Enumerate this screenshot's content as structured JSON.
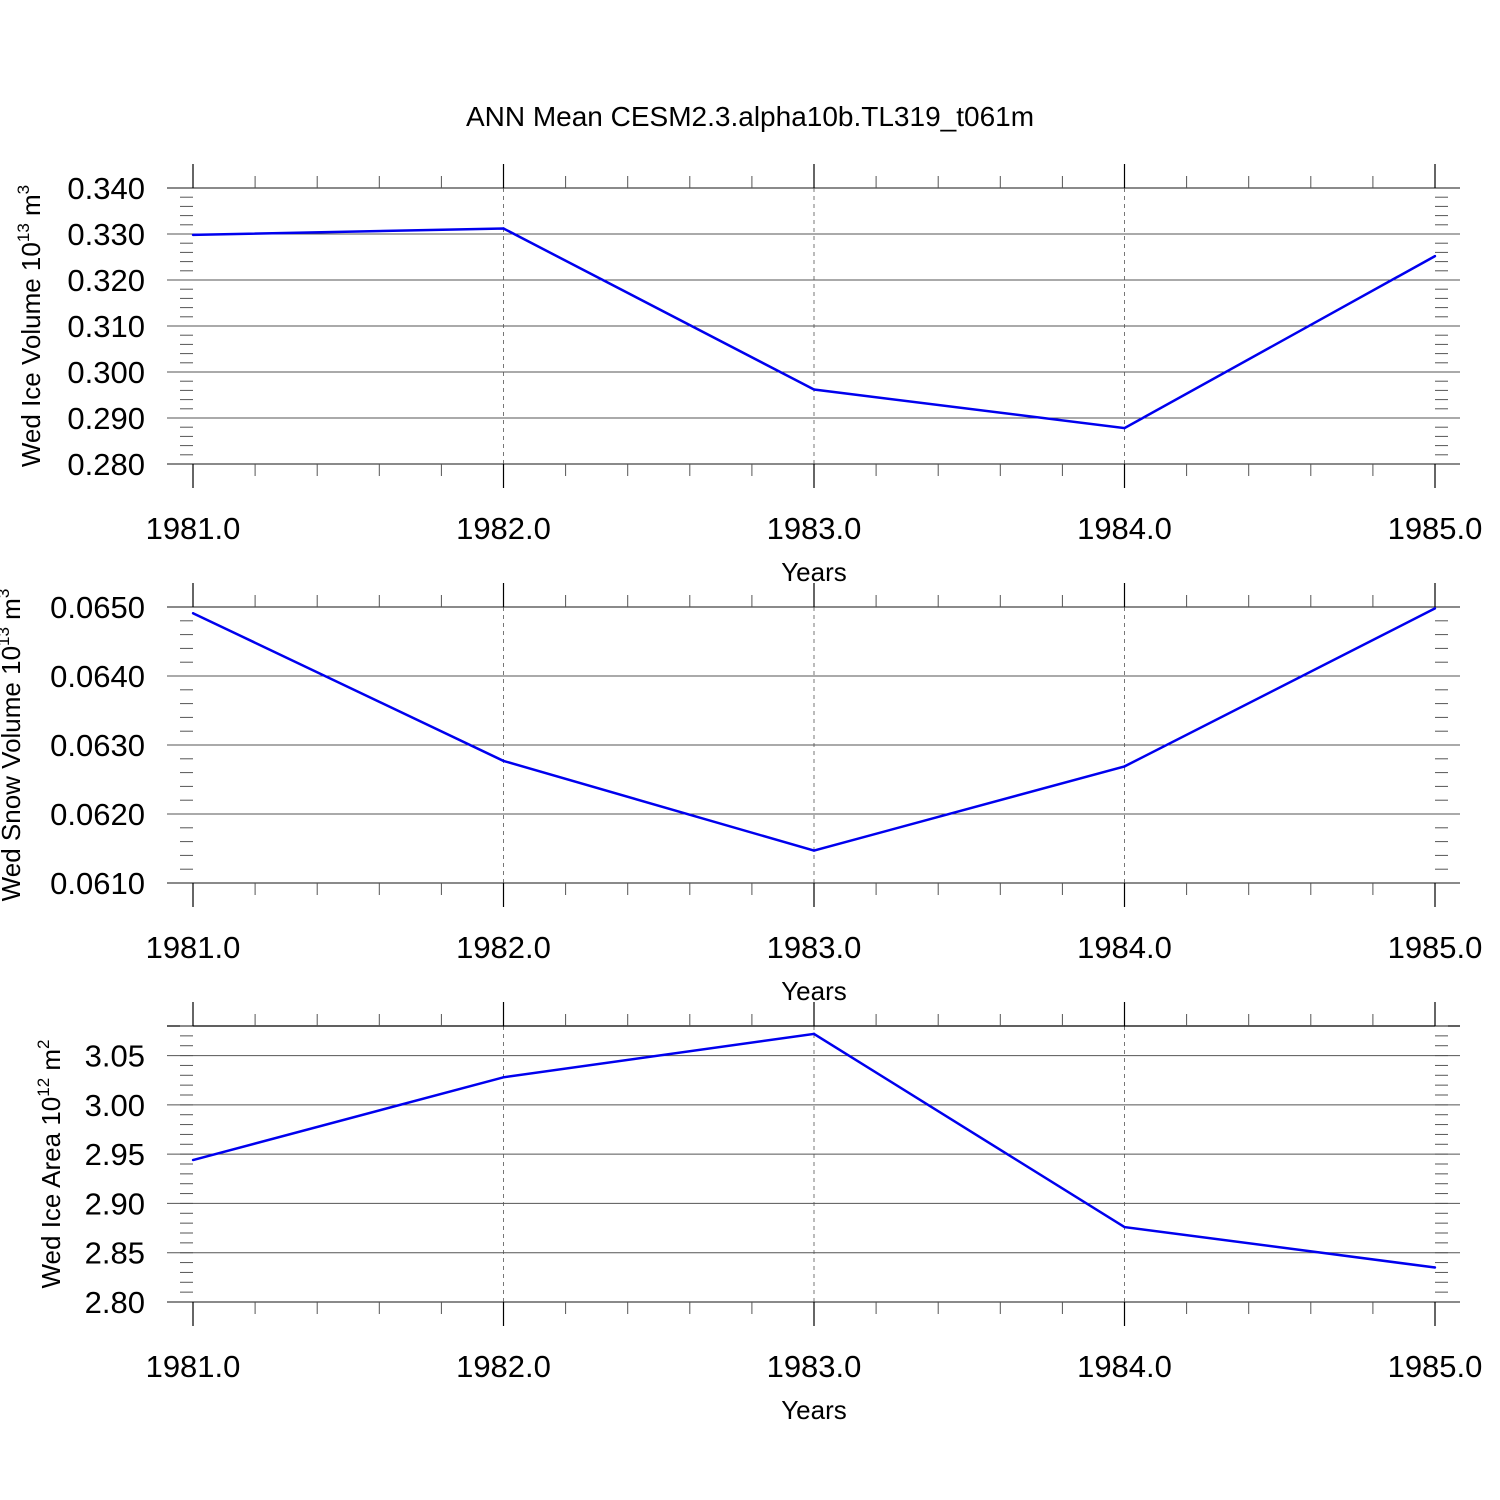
{
  "title": "ANN Mean CESM2.3.alpha10b.TL319_t061m",
  "colors": {
    "line": "#0000ee",
    "axis": "#000000",
    "grid": "#777777"
  },
  "chart_data": [
    {
      "type": "line",
      "ylabel": {
        "base": "Wed Ice Volume 10",
        "exp": "13",
        "unit": " m",
        "unit_exp": "3"
      },
      "xlabel": "Years",
      "x": [
        1981,
        1982,
        1983,
        1984,
        1985
      ],
      "xticks": [
        "1981.0",
        "1982.0",
        "1983.0",
        "1984.0",
        "1985.0"
      ],
      "y": [
        0.3298,
        0.3312,
        0.2962,
        0.2878,
        0.3252
      ],
      "yticks": [
        "0.280",
        "0.290",
        "0.300",
        "0.310",
        "0.320",
        "0.330",
        "0.340"
      ],
      "ylim": [
        0.28,
        0.34
      ],
      "xlim": [
        1981,
        1985
      ],
      "grid": "vertical dashed at major x ticks"
    },
    {
      "type": "line",
      "ylabel": {
        "base": "Wed Snow Volume 10",
        "exp": "13",
        "unit": " m",
        "unit_exp": "3"
      },
      "xlabel": "Years",
      "x": [
        1981,
        1982,
        1983,
        1984,
        1985
      ],
      "xticks": [
        "1981.0",
        "1982.0",
        "1983.0",
        "1984.0",
        "1985.0"
      ],
      "y": [
        0.06491,
        0.06277,
        0.06147,
        0.06269,
        0.06498
      ],
      "yticks": [
        "0.0610",
        "0.0620",
        "0.0630",
        "0.0640",
        "0.0650"
      ],
      "ylim": [
        0.061,
        0.065
      ],
      "xlim": [
        1981,
        1985
      ],
      "grid": "vertical dashed at major x ticks"
    },
    {
      "type": "line",
      "ylabel": {
        "base": "Wed Ice Area 10",
        "exp": "12",
        "unit": " m",
        "unit_exp": "2"
      },
      "xlabel": "Years",
      "x": [
        1981,
        1982,
        1983,
        1984,
        1985
      ],
      "xticks": [
        "1981.0",
        "1982.0",
        "1983.0",
        "1984.0",
        "1985.0"
      ],
      "y": [
        2.944,
        3.028,
        3.072,
        2.876,
        2.835
      ],
      "yticks": [
        "2.80",
        "2.85",
        "2.90",
        "2.95",
        "3.00",
        "3.05"
      ],
      "ylim": [
        2.8,
        3.08
      ],
      "xlim": [
        1981,
        1985
      ],
      "grid": "vertical dashed at major x ticks"
    }
  ]
}
